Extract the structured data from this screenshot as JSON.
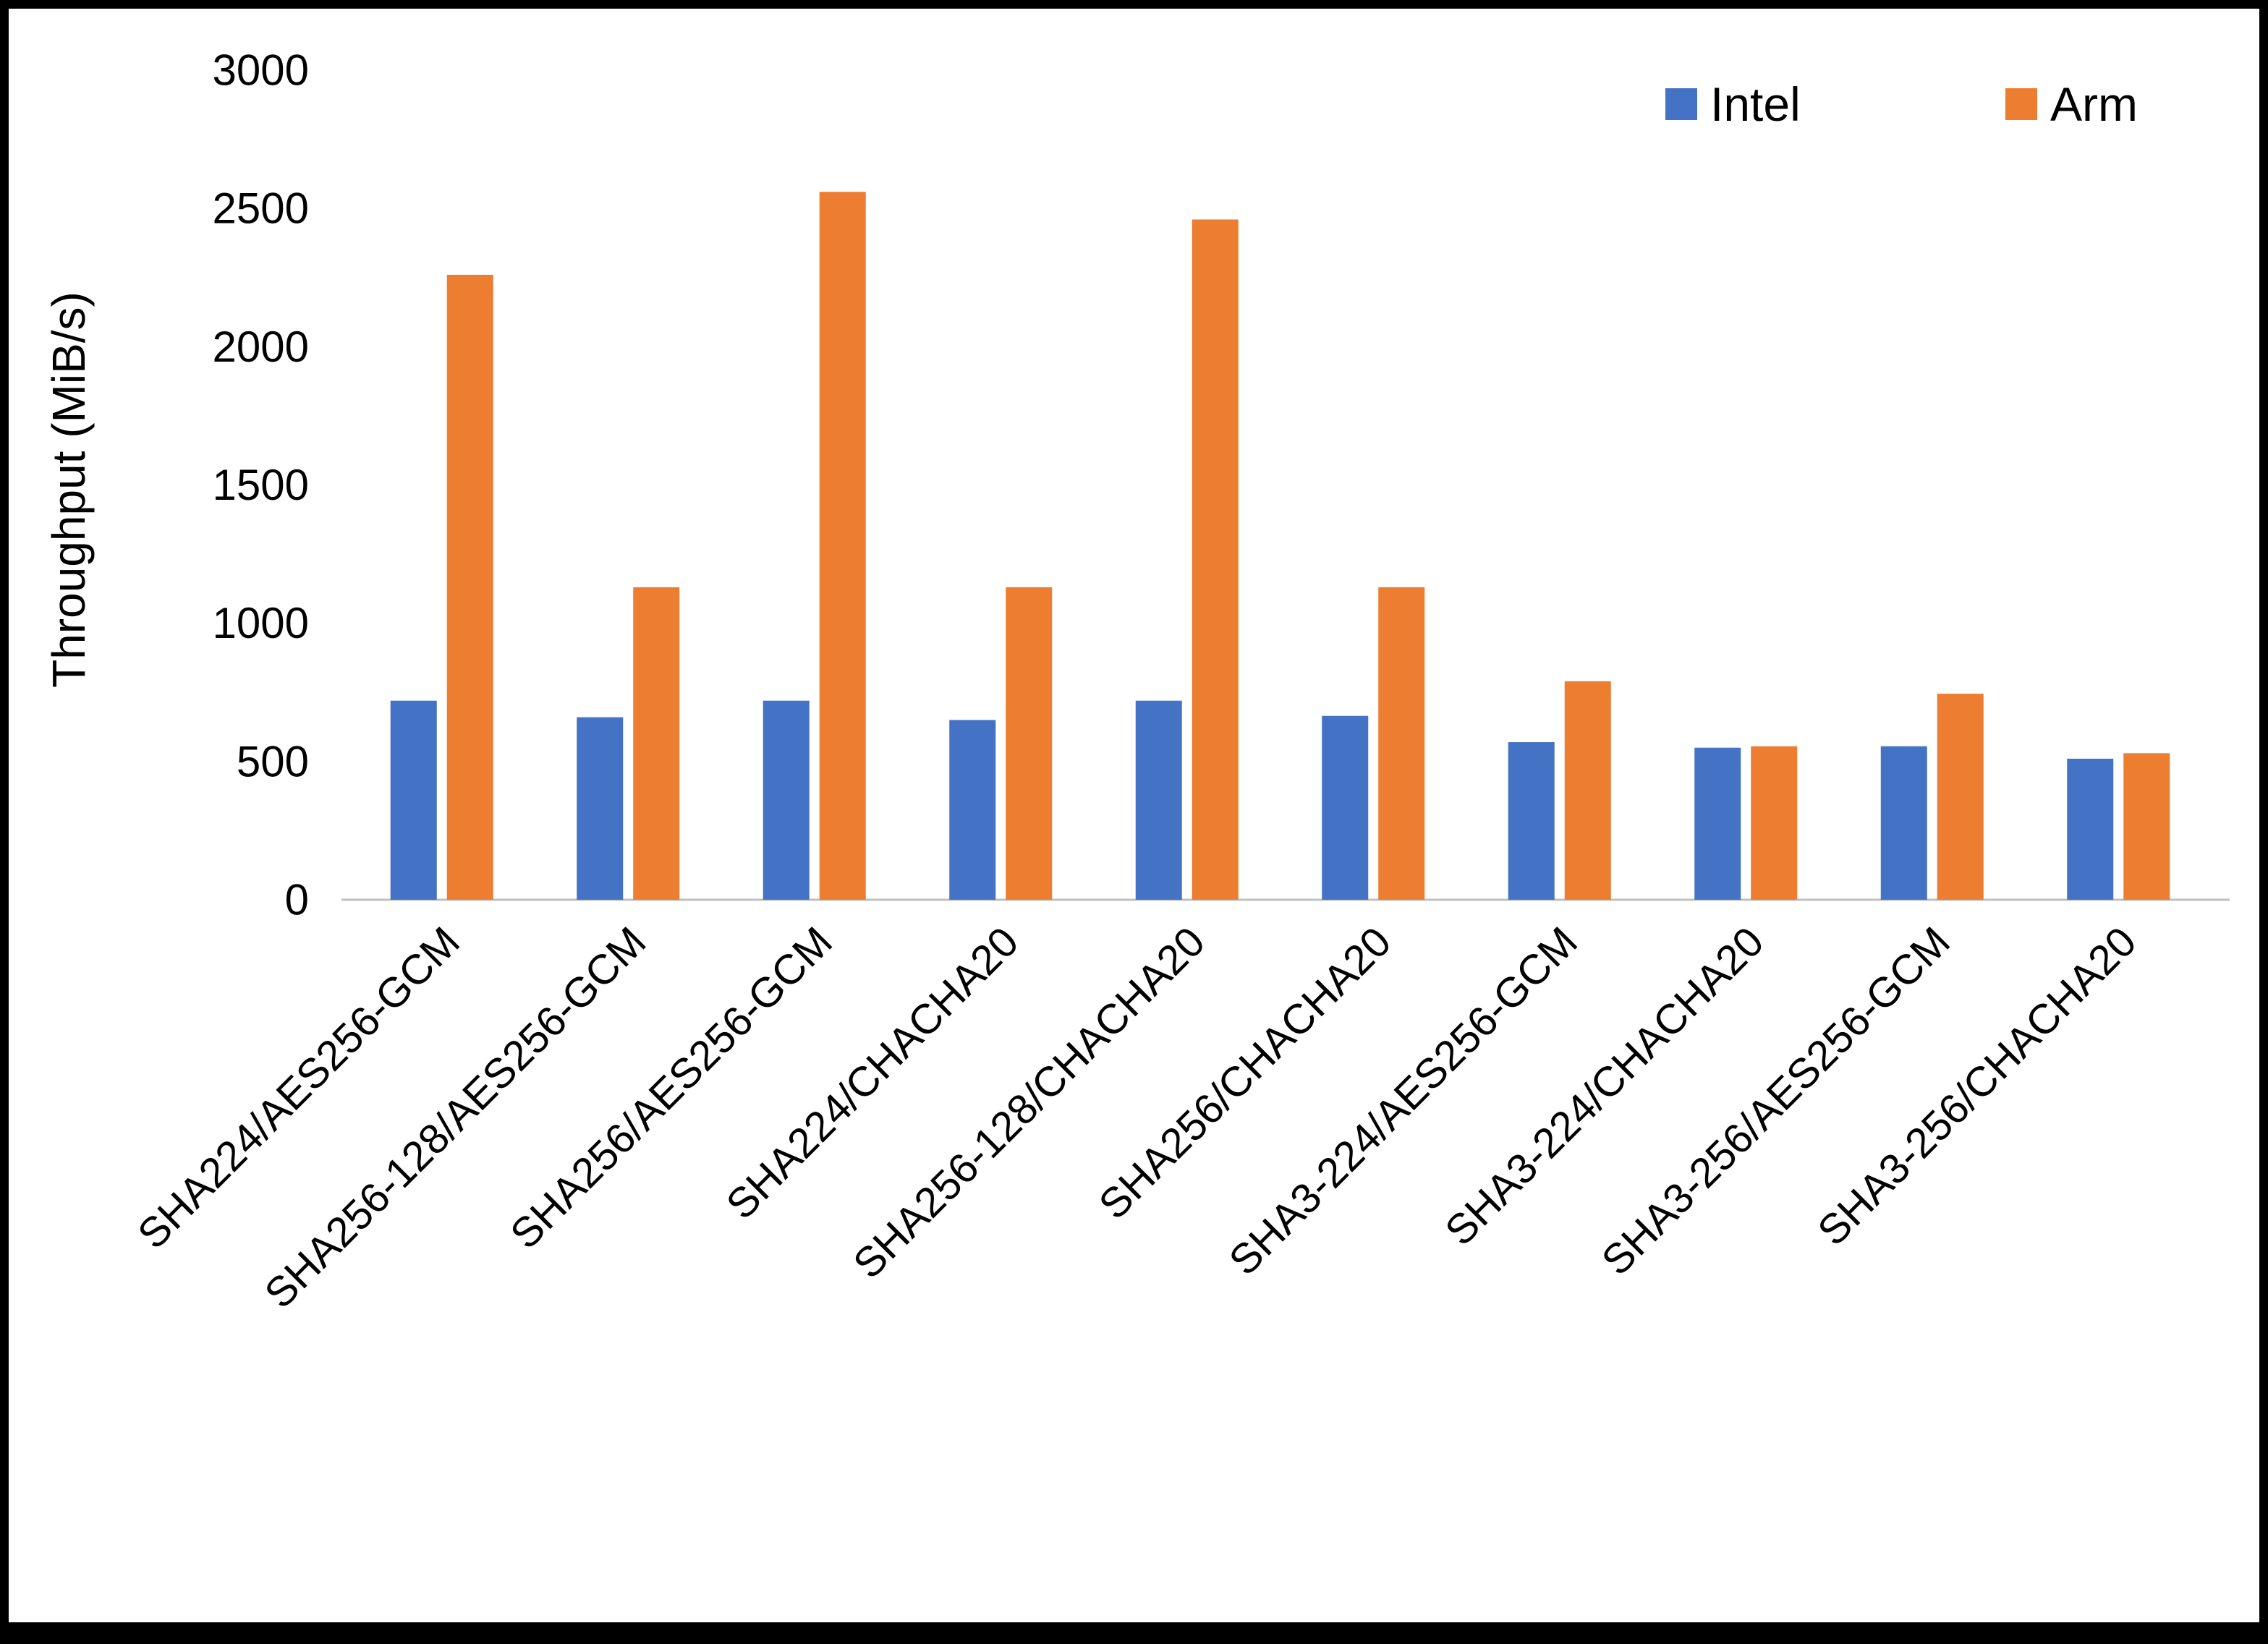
{
  "chart_data": {
    "type": "bar",
    "title": "",
    "xlabel": "",
    "ylabel": "Throughput (MiB/s)",
    "ylim": [
      0,
      3000
    ],
    "ytick_step": 500,
    "grid": false,
    "legend_position": "top-right",
    "categories": [
      "SHA224/AES256-GCM",
      "SHA256-128/AES256-GCM",
      "SHA256/AES256-GCM",
      "SHA224/CHACHA20",
      "SHA256-128/CHACHA20",
      "SHA256/CHACHA20",
      "SHA3-224/AES256-GCM",
      "SHA3-224/CHACHA20",
      "SHA3-256/AES256-GCM",
      "SHA3-256/CHACHA20"
    ],
    "series": [
      {
        "name": "Intel",
        "color": "#4472C4",
        "values": [
          720,
          660,
          720,
          650,
          720,
          665,
          570,
          550,
          555,
          510
        ]
      },
      {
        "name": "Arm",
        "color": "#ED7D31",
        "values": [
          2260,
          1130,
          2560,
          1130,
          2460,
          1130,
          790,
          555,
          745,
          530
        ]
      }
    ],
    "axis_line_color": "#BFBFBF",
    "y_tick_labels": [
      "0",
      "500",
      "1000",
      "1500",
      "2000",
      "2500",
      "3000"
    ]
  }
}
